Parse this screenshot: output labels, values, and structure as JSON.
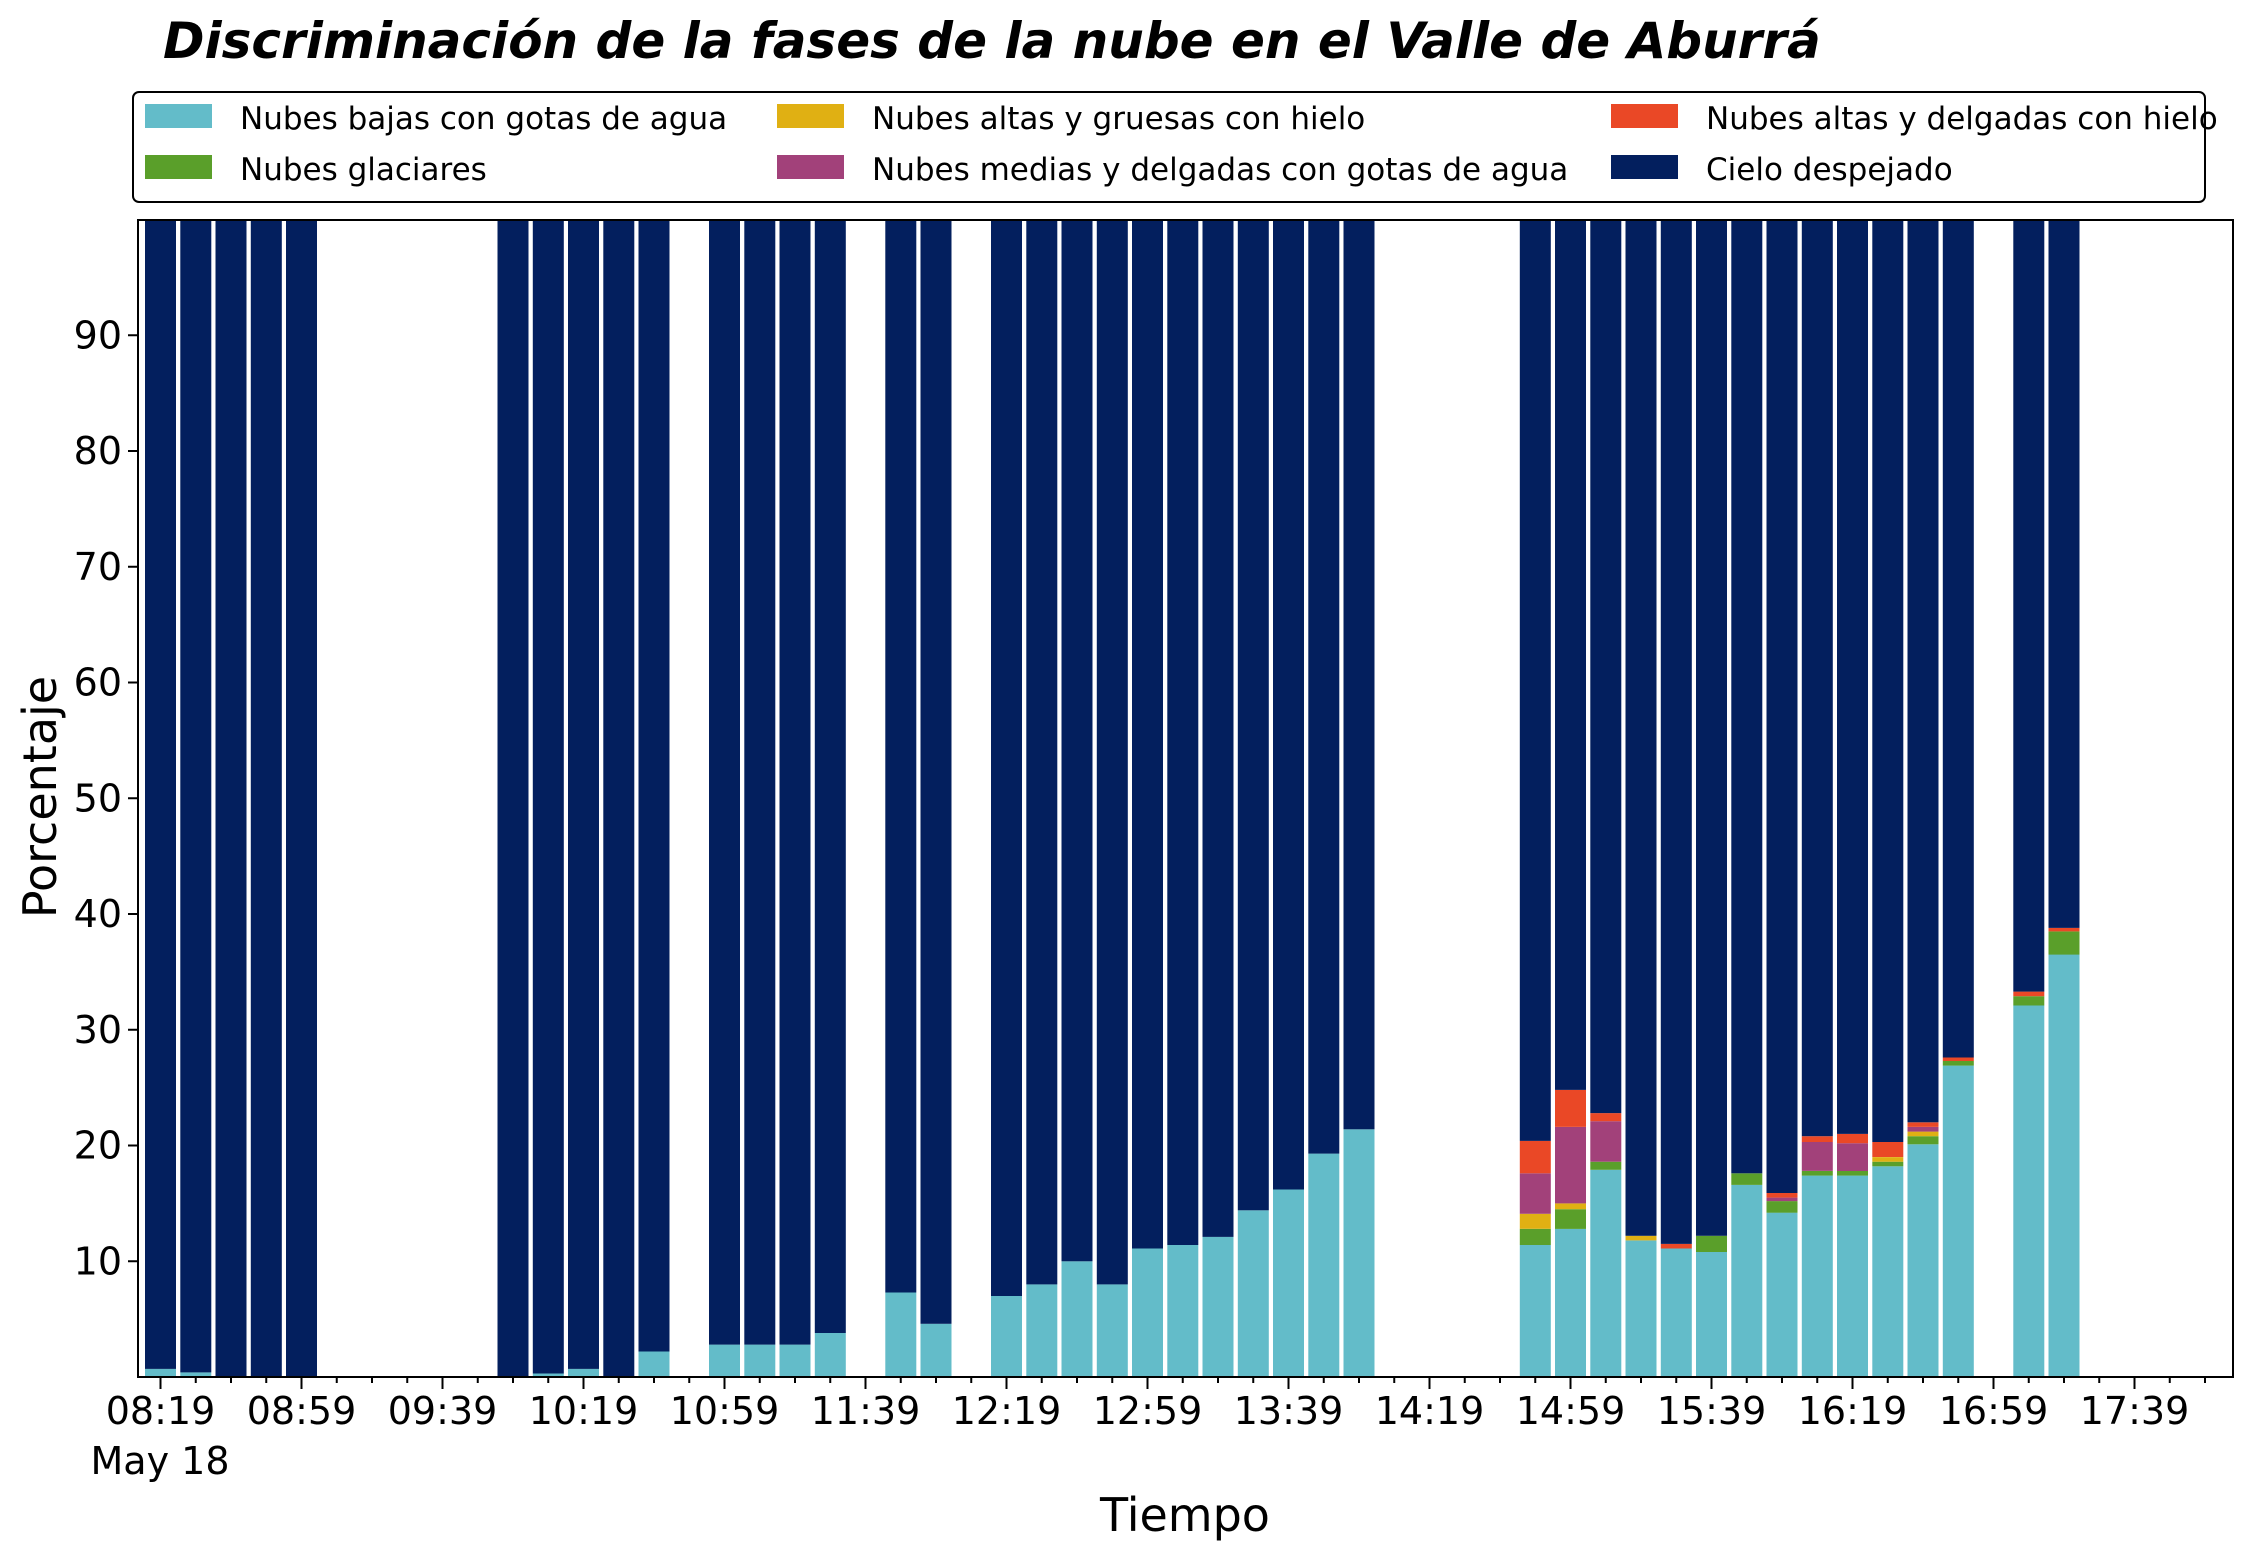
{
  "chart_data": {
    "type": "bar",
    "stacked": true,
    "title": "Discriminación de la fases de la nube en el Valle de Aburrá",
    "xlabel": "Tiempo",
    "ylabel": "Porcentaje",
    "ylim": [
      0,
      100
    ],
    "yticks": [
      10,
      20,
      30,
      40,
      50,
      60,
      70,
      80,
      90
    ],
    "grid": false,
    "legend_placement": "top",
    "date_label": "May 18",
    "xticks": [
      "08:19",
      "08:59",
      "09:39",
      "10:19",
      "10:59",
      "11:39",
      "12:19",
      "12:59",
      "13:39",
      "14:19",
      "14:59",
      "15:39",
      "16:19",
      "16:59",
      "17:39"
    ],
    "x_start": "08:19",
    "bar_interval_minutes": 10,
    "slots": 59,
    "series_colors": [
      "#63BCC9",
      "#5A9F2A",
      "#E0B013",
      "#A2417A",
      "#EA4826",
      "#031F5E"
    ],
    "series": [
      {
        "name": "Nubes bajas con gotas de agua",
        "color": "#63BCC9"
      },
      {
        "name": "Nubes glaciares",
        "color": "#5A9F2A"
      },
      {
        "name": "Nubes altas y gruesas con hielo",
        "color": "#E0B013"
      },
      {
        "name": "Nubes medias y delgadas con gotas de agua",
        "color": "#A2417A"
      },
      {
        "name": "Nubes altas y delgadas con hielo",
        "color": "#EA4826"
      },
      {
        "name": "Cielo despejado",
        "color": "#031F5E"
      }
    ],
    "bars": [
      {
        "time": "08:19",
        "values": [
          0.7,
          0,
          0,
          0,
          0,
          99.3
        ]
      },
      {
        "time": "08:29",
        "values": [
          0.4,
          0,
          0,
          0,
          0,
          99.6
        ]
      },
      {
        "time": "08:39",
        "values": [
          0,
          0,
          0,
          0,
          0,
          100
        ]
      },
      {
        "time": "08:49",
        "values": [
          0,
          0,
          0,
          0,
          0,
          100
        ]
      },
      {
        "time": "08:59",
        "values": [
          0,
          0,
          0,
          0,
          0,
          100
        ]
      },
      {
        "time": "10:00",
        "values": [
          0,
          0,
          0,
          0,
          0,
          100
        ]
      },
      {
        "time": "10:10",
        "values": [
          0.3,
          0,
          0,
          0,
          0,
          99.7
        ]
      },
      {
        "time": "10:20",
        "values": [
          0.7,
          0,
          0,
          0,
          0,
          99.3
        ]
      },
      {
        "time": "10:30",
        "values": [
          0,
          0,
          0,
          0,
          0,
          100
        ]
      },
      {
        "time": "10:40",
        "values": [
          2.2,
          0,
          0,
          0,
          0,
          97.8
        ]
      },
      {
        "time": "11:00",
        "values": [
          2.8,
          0,
          0,
          0,
          0,
          97.2
        ]
      },
      {
        "time": "11:10",
        "values": [
          2.8,
          0,
          0,
          0,
          0,
          97.2
        ]
      },
      {
        "time": "11:20",
        "values": [
          2.8,
          0,
          0,
          0,
          0,
          97.2
        ]
      },
      {
        "time": "11:30",
        "values": [
          3.8,
          0,
          0,
          0,
          0,
          96.2
        ]
      },
      {
        "time": "11:50",
        "values": [
          7.3,
          0,
          0,
          0,
          0,
          92.7
        ]
      },
      {
        "time": "12:00",
        "values": [
          4.6,
          0,
          0,
          0,
          0,
          95.4
        ]
      },
      {
        "time": "12:20",
        "values": [
          7.0,
          0,
          0,
          0,
          0,
          93.0
        ]
      },
      {
        "time": "12:30",
        "values": [
          8.0,
          0,
          0,
          0,
          0,
          92.0
        ]
      },
      {
        "time": "12:40",
        "values": [
          10.0,
          0,
          0,
          0,
          0,
          90.0
        ]
      },
      {
        "time": "12:50",
        "values": [
          8.0,
          0,
          0,
          0,
          0,
          92.0
        ]
      },
      {
        "time": "13:00",
        "values": [
          11.1,
          0,
          0,
          0,
          0,
          88.9
        ]
      },
      {
        "time": "13:10",
        "values": [
          11.4,
          0,
          0,
          0,
          0,
          88.6
        ]
      },
      {
        "time": "13:20",
        "values": [
          12.1,
          0,
          0,
          0,
          0,
          87.9
        ]
      },
      {
        "time": "13:30",
        "values": [
          14.4,
          0,
          0,
          0,
          0,
          85.6
        ]
      },
      {
        "time": "13:40",
        "values": [
          16.2,
          0,
          0,
          0,
          0,
          83.8
        ]
      },
      {
        "time": "13:50",
        "values": [
          19.3,
          0,
          0,
          0,
          0,
          80.7
        ]
      },
      {
        "time": "14:00",
        "values": [
          21.4,
          0,
          0,
          0,
          0,
          78.6
        ]
      },
      {
        "time": "14:50",
        "values": [
          11.4,
          1.4,
          1.3,
          3.5,
          2.8,
          79.6
        ]
      },
      {
        "time": "15:00",
        "values": [
          12.8,
          1.7,
          0.5,
          6.6,
          3.2,
          75.2
        ]
      },
      {
        "time": "15:10",
        "values": [
          17.9,
          0.7,
          0,
          3.5,
          0.7,
          77.2
        ]
      },
      {
        "time": "15:20",
        "values": [
          11.8,
          0,
          0.4,
          0,
          0,
          87.8
        ]
      },
      {
        "time": "15:30",
        "values": [
          11.1,
          0,
          0,
          0,
          0.4,
          88.5
        ]
      },
      {
        "time": "15:40",
        "values": [
          10.8,
          1.4,
          0,
          0,
          0,
          87.8
        ]
      },
      {
        "time": "15:50",
        "values": [
          16.6,
          1.0,
          0,
          0,
          0,
          82.4
        ]
      },
      {
        "time": "16:00",
        "values": [
          14.2,
          1.0,
          0,
          0.3,
          0.4,
          84.1
        ]
      },
      {
        "time": "16:10",
        "values": [
          17.4,
          0.4,
          0,
          2.5,
          0.5,
          79.2
        ]
      },
      {
        "time": "16:20",
        "values": [
          17.4,
          0.4,
          0,
          2.4,
          0.8,
          79.0
        ]
      },
      {
        "time": "16:30",
        "values": [
          18.2,
          0.4,
          0.4,
          0,
          1.3,
          79.7
        ]
      },
      {
        "time": "16:40",
        "values": [
          20.1,
          0.7,
          0.4,
          0.4,
          0.4,
          78.0
        ]
      },
      {
        "time": "16:50",
        "values": [
          26.9,
          0.4,
          0,
          0,
          0.3,
          72.4
        ]
      },
      {
        "time": "17:10",
        "values": [
          32.1,
          0.8,
          0,
          0,
          0.4,
          66.7
        ]
      },
      {
        "time": "17:20",
        "values": [
          36.5,
          2.0,
          0,
          0,
          0.3,
          61.2
        ]
      }
    ]
  }
}
